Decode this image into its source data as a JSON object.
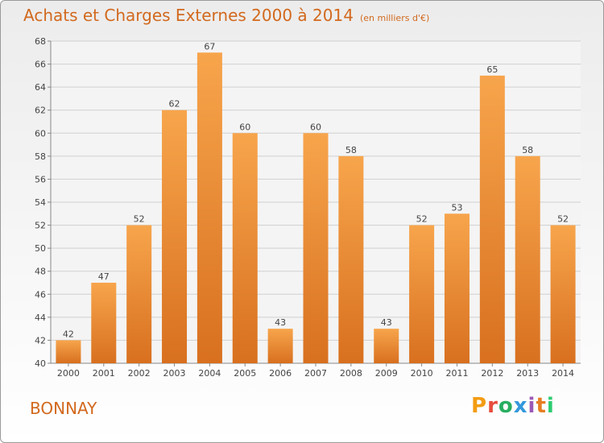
{
  "header": {
    "title": "Achats et Charges Externes 2000 à 2014",
    "subtitle": "(en milliers d'€)"
  },
  "footer": {
    "location": "BONNAY",
    "logo_text": "Proxiti",
    "logo_colors": [
      "#f39c12",
      "#e74c3c",
      "#27ae60",
      "#3498db",
      "#9b59b6",
      "#e67e22",
      "#2ecc71"
    ]
  },
  "colors": {
    "accent": "#d2691e",
    "bar_top": "#f7a54c",
    "bar_bottom": "#d8701f",
    "grid": "#d0d0d0"
  },
  "chart_data": {
    "type": "bar",
    "categories": [
      "2000",
      "2001",
      "2002",
      "2003",
      "2004",
      "2005",
      "2006",
      "2007",
      "2008",
      "2009",
      "2010",
      "2011",
      "2012",
      "2013",
      "2014"
    ],
    "values": [
      42,
      47,
      52,
      62,
      67,
      60,
      43,
      60,
      58,
      43,
      52,
      53,
      65,
      58,
      52
    ],
    "ylim": [
      40,
      68
    ],
    "yticks": [
      40,
      42,
      44,
      46,
      48,
      50,
      52,
      54,
      56,
      58,
      60,
      62,
      64,
      66,
      68
    ],
    "title": "Achats et Charges Externes 2000 à 2014",
    "xlabel": "",
    "ylabel": "",
    "grid": true,
    "data_labels": true
  }
}
